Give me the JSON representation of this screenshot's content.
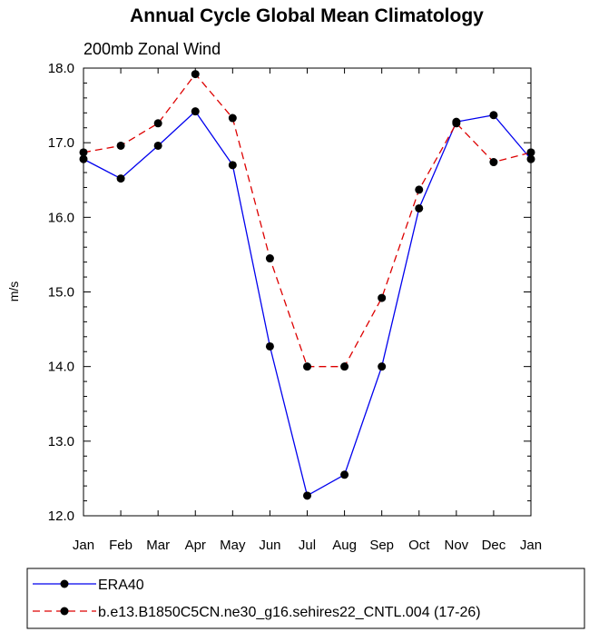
{
  "chart_data": {
    "type": "line",
    "title": "Annual Cycle Global Mean Climatology",
    "subtitle": "200mb Zonal Wind",
    "xlabel": "",
    "ylabel": "m/s",
    "categories": [
      "Jan",
      "Feb",
      "Mar",
      "Apr",
      "May",
      "Jun",
      "Jul",
      "Aug",
      "Sep",
      "Oct",
      "Nov",
      "Dec",
      "Jan"
    ],
    "y_ticks": [
      "12.0",
      "13.0",
      "14.0",
      "15.0",
      "16.0",
      "17.0",
      "18.0"
    ],
    "ylim": [
      12.0,
      18.0
    ],
    "grid": false,
    "legend_position": "bottom",
    "series": [
      {
        "name": "ERA40",
        "color": "#0000ee",
        "line_style": "solid",
        "marker": "filled-circle",
        "values": [
          16.78,
          16.52,
          16.96,
          17.42,
          16.7,
          14.27,
          12.27,
          12.55,
          14.0,
          16.12,
          17.28,
          17.37,
          16.78
        ]
      },
      {
        "name": "b.e13.B1850C5CN.ne30_g16.sehires22_CNTL.004 (17-26)",
        "color": "#dd0000",
        "line_style": "dashed",
        "marker": "filled-circle",
        "values": [
          16.87,
          16.96,
          17.26,
          17.92,
          17.33,
          15.45,
          14.0,
          14.0,
          14.92,
          16.37,
          17.26,
          16.74,
          16.87
        ]
      }
    ]
  }
}
